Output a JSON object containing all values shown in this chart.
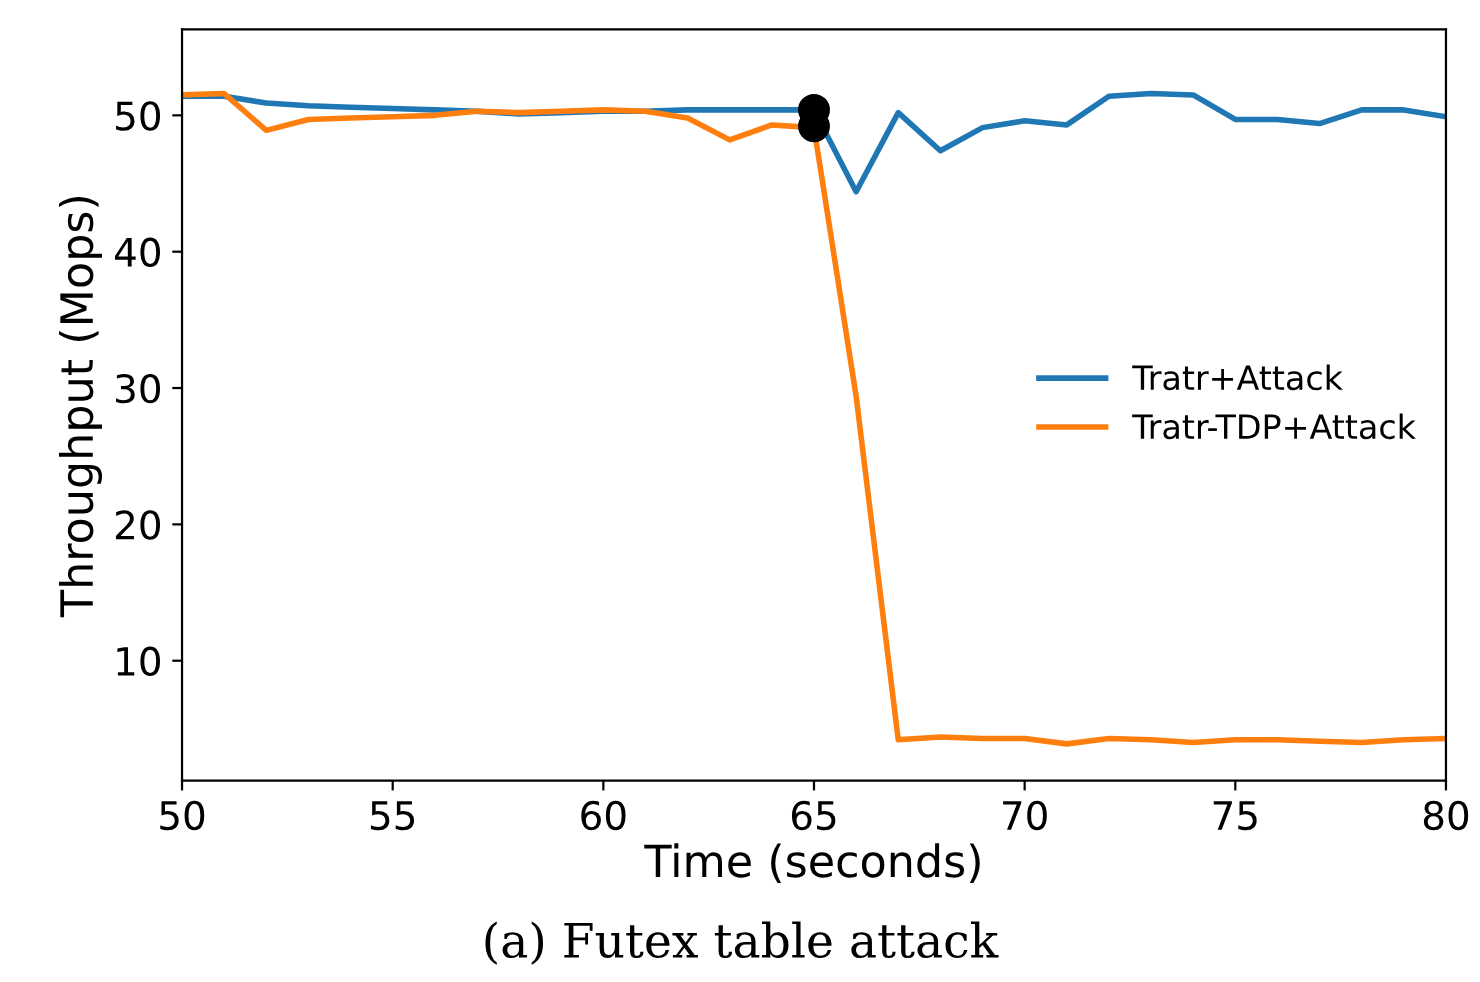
{
  "chart_data": {
    "type": "line",
    "xlabel": "Time (seconds)",
    "ylabel": "Throughput (Mops)",
    "xlim": [
      50,
      80
    ],
    "xticks": [
      50,
      55,
      60,
      65,
      70,
      75,
      80
    ],
    "ylim": [
      1.2,
      56.3
    ],
    "yticks": [
      10,
      20,
      30,
      40,
      50
    ],
    "grid": false,
    "legend": "right",
    "marker": "none",
    "line_style": "solid",
    "x": [
      50,
      51,
      52,
      53,
      54,
      55,
      56,
      57,
      58,
      59,
      60,
      61,
      62,
      63,
      64,
      65,
      66,
      67,
      68,
      69,
      70,
      71,
      72,
      73,
      74,
      75,
      76,
      77,
      78,
      79,
      80
    ],
    "series": [
      {
        "name": "Tratr+Attack",
        "color": "#1f77b4",
        "values": [
          51.4,
          51.4,
          50.9,
          50.7,
          50.6,
          50.5,
          50.4,
          50.3,
          50.1,
          50.2,
          50.3,
          50.3,
          50.4,
          50.4,
          50.4,
          50.4,
          44.4,
          50.2,
          47.4,
          49.1,
          49.6,
          49.3,
          51.4,
          51.6,
          51.5,
          49.7,
          49.7,
          49.4,
          50.4,
          50.4,
          49.9
        ]
      },
      {
        "name": "Tratr-TDP+Attack",
        "color": "#ff7f0e",
        "values": [
          51.5,
          51.6,
          48.9,
          49.7,
          49.8,
          49.9,
          50.0,
          50.3,
          50.2,
          50.3,
          50.4,
          50.3,
          49.8,
          48.2,
          49.3,
          49.1,
          29.4,
          4.2,
          4.4,
          4.3,
          4.3,
          3.9,
          4.3,
          4.2,
          4.0,
          4.2,
          4.2,
          4.1,
          4.0,
          4.2,
          4.3
        ]
      },
      {
        "type": "scatter",
        "color": "#000000",
        "marker": "circle",
        "x": [
          65,
          65
        ],
        "values": [
          50.4,
          49.2
        ]
      }
    ],
    "annotations": [
      "(a) Futex table attack"
    ]
  }
}
